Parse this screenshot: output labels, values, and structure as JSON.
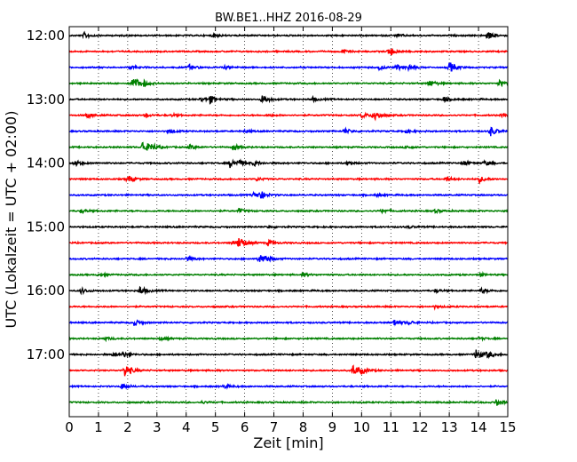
{
  "chart_data": {
    "type": "line",
    "title": "BW.BE1..HHZ 2016-08-29",
    "xlabel": "Zeit  [min]",
    "ylabel": "UTC (Lokalzeit = UTC + 02:00)",
    "xlim": [
      0,
      15
    ],
    "x_ticks": [
      "0",
      "1",
      "2",
      "3",
      "4",
      "5",
      "6",
      "7",
      "8",
      "9",
      "10",
      "11",
      "12",
      "13",
      "14",
      "15"
    ],
    "y_tick_labels": [
      "12:00",
      "13:00",
      "14:00",
      "15:00",
      "16:00",
      "17:00"
    ],
    "grid": "vertical dotted at each minute",
    "trace_interval_min": 15,
    "colors": [
      "#000000",
      "#ff0000",
      "#0000ff",
      "#008000"
    ],
    "traces": [
      {
        "start": "12:00",
        "color": "#000000",
        "events": [
          [
            0.5,
            0.35
          ],
          [
            4.9,
            0.2
          ],
          [
            14.3,
            0.45
          ],
          [
            11.2,
            0.15
          ]
        ]
      },
      {
        "start": "12:15",
        "color": "#ff0000",
        "events": [
          [
            9.3,
            0.25
          ],
          [
            10.9,
            0.4
          ],
          [
            11.0,
            0.2
          ]
        ]
      },
      {
        "start": "12:30",
        "color": "#0000ff",
        "events": [
          [
            2.1,
            0.25
          ],
          [
            4.1,
            0.35
          ],
          [
            5.3,
            0.2
          ],
          [
            10.6,
            0.25
          ],
          [
            11.2,
            0.35
          ],
          [
            11.6,
            0.3
          ],
          [
            13.0,
            0.7
          ]
        ]
      },
      {
        "start": "12:45",
        "color": "#008000",
        "events": [
          [
            2.2,
            0.6
          ],
          [
            2.5,
            0.35
          ],
          [
            2.1,
            0.3
          ],
          [
            12.3,
            0.45
          ],
          [
            14.7,
            0.4
          ]
        ]
      },
      {
        "start": "13:00",
        "color": "#000000",
        "events": [
          [
            4.8,
            0.45
          ],
          [
            4.5,
            0.3
          ],
          [
            6.6,
            0.6
          ],
          [
            8.3,
            0.25
          ],
          [
            12.8,
            0.35
          ]
        ]
      },
      {
        "start": "13:15",
        "color": "#ff0000",
        "events": [
          [
            0.6,
            0.35
          ],
          [
            2.6,
            0.2
          ],
          [
            3.5,
            0.15
          ],
          [
            6.8,
            0.15
          ],
          [
            10.4,
            0.8
          ],
          [
            10.0,
            0.35
          ],
          [
            14.8,
            0.2
          ]
        ]
      },
      {
        "start": "13:30",
        "color": "#0000ff",
        "events": [
          [
            3.4,
            0.3
          ],
          [
            6.0,
            0.15
          ],
          [
            9.4,
            0.35
          ],
          [
            14.4,
            0.6
          ],
          [
            11.5,
            0.2
          ]
        ]
      },
      {
        "start": "13:45",
        "color": "#008000",
        "events": [
          [
            2.5,
            0.9
          ],
          [
            2.8,
            0.4
          ],
          [
            4.1,
            0.3
          ],
          [
            5.6,
            0.4
          ],
          [
            11.5,
            0.2
          ]
        ]
      },
      {
        "start": "14:00",
        "color": "#000000",
        "events": [
          [
            0.2,
            0.35
          ],
          [
            5.5,
            0.55
          ],
          [
            5.8,
            0.3
          ],
          [
            6.3,
            0.3
          ],
          [
            9.5,
            0.25
          ],
          [
            13.5,
            0.3
          ],
          [
            14.2,
            0.3
          ]
        ]
      },
      {
        "start": "14:15",
        "color": "#ff0000",
        "events": [
          [
            2.0,
            0.45
          ],
          [
            6.4,
            0.2
          ],
          [
            12.9,
            0.3
          ],
          [
            14.0,
            0.45
          ]
        ]
      },
      {
        "start": "14:30",
        "color": "#0000ff",
        "events": [
          [
            6.5,
            0.55
          ],
          [
            6.3,
            0.3
          ],
          [
            10.5,
            0.15
          ]
        ]
      },
      {
        "start": "14:45",
        "color": "#008000",
        "events": [
          [
            0.4,
            0.25
          ],
          [
            5.8,
            0.25
          ],
          [
            10.7,
            0.25
          ],
          [
            12.5,
            0.2
          ]
        ]
      },
      {
        "start": "15:00",
        "color": "#000000",
        "events": [
          [
            6.8,
            0.15
          ],
          [
            11.6,
            0.15
          ]
        ]
      },
      {
        "start": "15:15",
        "color": "#ff0000",
        "events": [
          [
            5.8,
            0.8
          ],
          [
            5.6,
            0.3
          ],
          [
            6.8,
            0.35
          ]
        ]
      },
      {
        "start": "15:30",
        "color": "#0000ff",
        "events": [
          [
            4.0,
            0.3
          ],
          [
            6.5,
            0.55
          ],
          [
            6.7,
            0.35
          ]
        ]
      },
      {
        "start": "15:45",
        "color": "#008000",
        "events": [
          [
            1.0,
            0.2
          ],
          [
            8.0,
            0.25
          ],
          [
            14.0,
            0.2
          ]
        ]
      },
      {
        "start": "16:00",
        "color": "#000000",
        "events": [
          [
            0.4,
            0.35
          ],
          [
            2.4,
            0.6
          ],
          [
            12.5,
            0.2
          ],
          [
            14.1,
            0.3
          ]
        ]
      },
      {
        "start": "16:15",
        "color": "#ff0000",
        "events": [
          [
            12.5,
            0.15
          ]
        ]
      },
      {
        "start": "16:30",
        "color": "#0000ff",
        "events": [
          [
            2.2,
            0.45
          ],
          [
            11.1,
            0.45
          ],
          [
            11.6,
            0.2
          ]
        ]
      },
      {
        "start": "16:45",
        "color": "#008000",
        "events": [
          [
            1.2,
            0.2
          ],
          [
            3.1,
            0.2
          ],
          [
            14.0,
            0.15
          ]
        ]
      },
      {
        "start": "17:00",
        "color": "#000000",
        "events": [
          [
            1.5,
            0.25
          ],
          [
            1.8,
            0.35
          ],
          [
            13.9,
            0.7
          ],
          [
            14.3,
            0.4
          ]
        ]
      },
      {
        "start": "17:15",
        "color": "#ff0000",
        "events": [
          [
            1.9,
            0.85
          ],
          [
            9.7,
            0.7
          ],
          [
            10.0,
            0.3
          ]
        ]
      },
      {
        "start": "17:30",
        "color": "#0000ff",
        "events": [
          [
            1.8,
            0.35
          ],
          [
            5.3,
            0.2
          ]
        ]
      },
      {
        "start": "17:45",
        "color": "#008000",
        "events": [
          [
            14.6,
            0.45
          ],
          [
            4.5,
            0.15
          ]
        ]
      }
    ]
  }
}
